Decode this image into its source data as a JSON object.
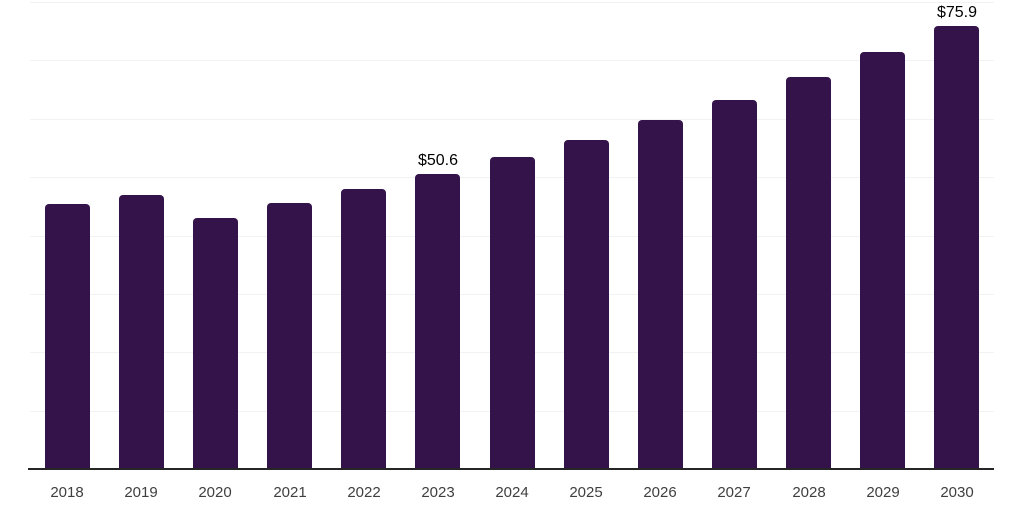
{
  "chart_data": {
    "type": "bar",
    "categories": [
      "2018",
      "2019",
      "2020",
      "2021",
      "2022",
      "2023",
      "2024",
      "2025",
      "2026",
      "2027",
      "2028",
      "2029",
      "2030"
    ],
    "values": [
      45.4,
      47.0,
      43.0,
      45.6,
      47.9,
      50.6,
      53.4,
      56.4,
      59.8,
      63.2,
      67.2,
      71.4,
      75.9
    ],
    "data_labels": {
      "2023": "$50.6",
      "2030": "$75.9"
    },
    "title": "",
    "xlabel": "",
    "ylabel": "",
    "ylim": [
      0,
      80
    ],
    "grid": true,
    "gridline_values": [
      10,
      20,
      30,
      40,
      50,
      60,
      70,
      80
    ],
    "legend": "none",
    "colors": {
      "bar_fill": "#33134a",
      "axis_line": "#262626",
      "gridline": "#f2f2f5",
      "tick_label": "#3f3f3f",
      "data_label": "#000000",
      "background": "#ffffff"
    }
  }
}
